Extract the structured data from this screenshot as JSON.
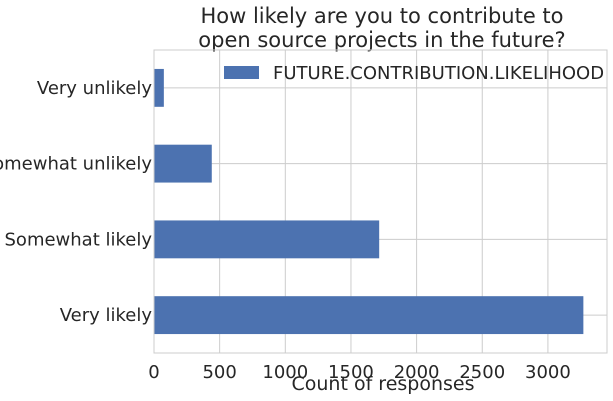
{
  "chart_data": {
    "type": "bar",
    "orientation": "horizontal",
    "title_lines": [
      "How likely are you to contribute to",
      "open source projects in the future?"
    ],
    "categories": [
      "Very likely",
      "Somewhat likely",
      "Somewhat unlikely",
      "Very unlikely"
    ],
    "series": [
      {
        "name": "FUTURE.CONTRIBUTION.LIKELIHOOD",
        "values": [
          3270,
          1715,
          440,
          75
        ],
        "color": "#4c72b0"
      }
    ],
    "xlabel": "Count of responses",
    "ylabel": "",
    "xlim": [
      0,
      3450
    ],
    "xticks": [
      0,
      500,
      1000,
      1500,
      2000,
      2500,
      3000
    ],
    "grid": true,
    "legend_position": "top-right"
  }
}
